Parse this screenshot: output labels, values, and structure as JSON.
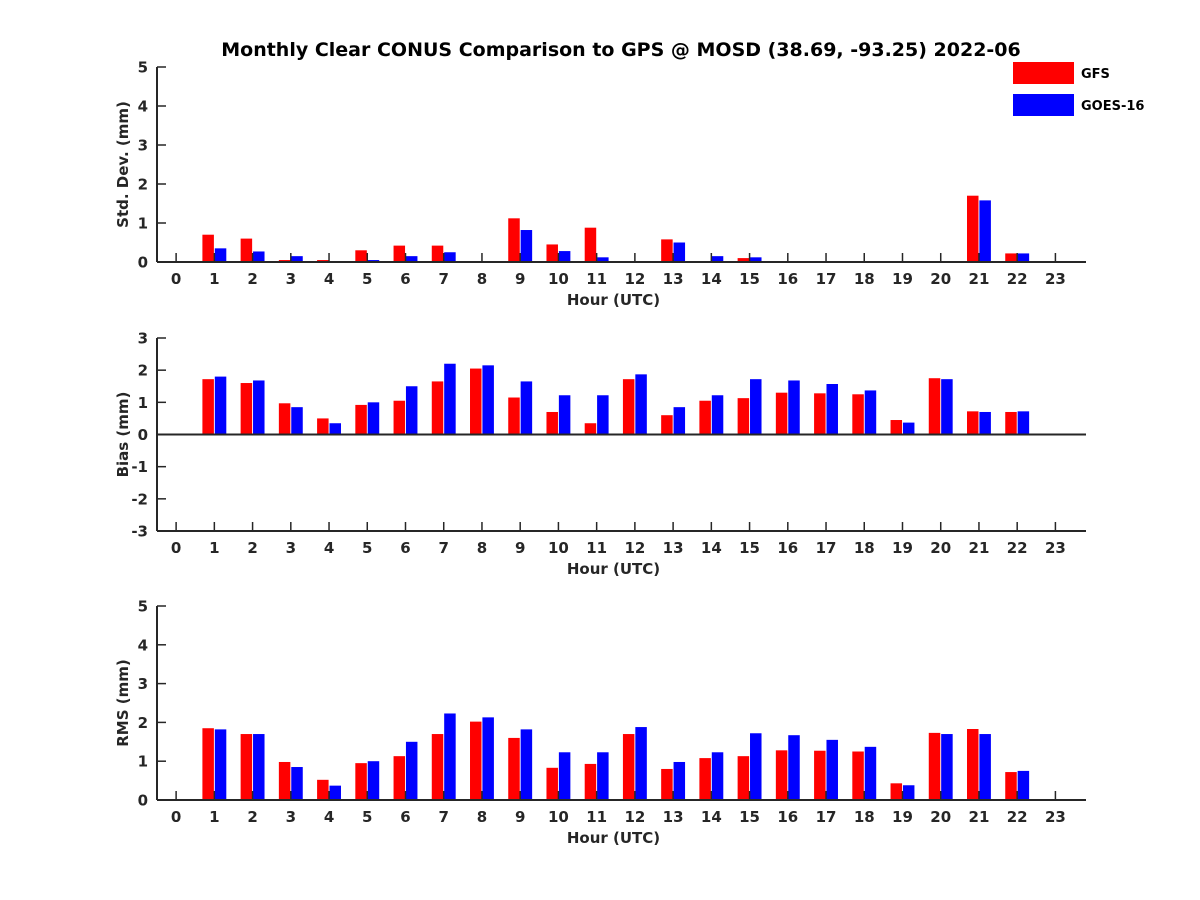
{
  "figure": {
    "title": "Monthly Clear CONUS Comparison to GPS @ MOSD (38.69, -93.25) 2022-06"
  },
  "legend": {
    "placement": "top-right",
    "entries": [
      {
        "name": "GFS",
        "color": "#ff0000"
      },
      {
        "name": "GOES-16",
        "color": "#0000ff"
      }
    ]
  },
  "chart_data": [
    {
      "type": "bar",
      "xlabel": "Hour (UTC)",
      "ylabel": "Std. Dev. (mm)",
      "xlim": [
        -0.5,
        23.8
      ],
      "ylim": [
        0,
        5
      ],
      "yticks": [
        0,
        1,
        2,
        3,
        4,
        5
      ],
      "grid": false,
      "categories": [
        0,
        1,
        2,
        3,
        4,
        5,
        6,
        7,
        8,
        9,
        10,
        11,
        12,
        13,
        14,
        15,
        16,
        17,
        18,
        19,
        20,
        21,
        22,
        23
      ],
      "series": [
        {
          "name": "GFS",
          "color": "#ff0000",
          "values": [
            null,
            0.7,
            0.6,
            0.05,
            0.05,
            0.3,
            0.42,
            0.42,
            null,
            1.12,
            0.45,
            0.88,
            null,
            0.58,
            0.02,
            0.1,
            null,
            null,
            null,
            null,
            null,
            1.7,
            0.22,
            null
          ]
        },
        {
          "name": "GOES-16",
          "color": "#0000ff",
          "values": [
            null,
            0.35,
            0.27,
            0.15,
            null,
            0.05,
            0.15,
            0.25,
            null,
            0.82,
            0.28,
            0.12,
            null,
            0.5,
            0.15,
            0.12,
            null,
            null,
            null,
            null,
            null,
            1.58,
            0.22,
            null
          ]
        }
      ]
    },
    {
      "type": "bar",
      "xlabel": "Hour (UTC)",
      "ylabel": "Bias (mm)",
      "xlim": [
        -0.5,
        23.8
      ],
      "ylim": [
        -3,
        3
      ],
      "yticks": [
        -3,
        -2,
        -1,
        0,
        1,
        2,
        3
      ],
      "grid": false,
      "categories": [
        0,
        1,
        2,
        3,
        4,
        5,
        6,
        7,
        8,
        9,
        10,
        11,
        12,
        13,
        14,
        15,
        16,
        17,
        18,
        19,
        20,
        21,
        22,
        23
      ],
      "series": [
        {
          "name": "GFS",
          "color": "#ff0000",
          "values": [
            null,
            1.72,
            1.6,
            0.97,
            0.5,
            0.92,
            1.05,
            1.65,
            2.05,
            1.15,
            0.7,
            0.35,
            1.72,
            0.6,
            1.05,
            1.13,
            1.3,
            1.28,
            1.25,
            0.45,
            1.75,
            0.72,
            0.7,
            null
          ]
        },
        {
          "name": "GOES-16",
          "color": "#0000ff",
          "values": [
            null,
            1.8,
            1.68,
            0.85,
            0.35,
            1.0,
            1.5,
            2.2,
            2.15,
            1.65,
            1.22,
            1.22,
            1.87,
            0.85,
            1.22,
            1.72,
            1.68,
            1.57,
            1.37,
            0.37,
            1.72,
            0.7,
            0.72,
            null
          ]
        }
      ]
    },
    {
      "type": "bar",
      "xlabel": "Hour (UTC)",
      "ylabel": "RMS (mm)",
      "xlim": [
        -0.5,
        23.8
      ],
      "ylim": [
        0,
        5
      ],
      "yticks": [
        0,
        1,
        2,
        3,
        4,
        5
      ],
      "grid": false,
      "categories": [
        0,
        1,
        2,
        3,
        4,
        5,
        6,
        7,
        8,
        9,
        10,
        11,
        12,
        13,
        14,
        15,
        16,
        17,
        18,
        19,
        20,
        21,
        22,
        23
      ],
      "series": [
        {
          "name": "GFS",
          "color": "#ff0000",
          "values": [
            null,
            1.85,
            1.7,
            0.98,
            0.52,
            0.95,
            1.13,
            1.7,
            2.02,
            1.6,
            0.83,
            0.93,
            1.7,
            0.8,
            1.08,
            1.13,
            1.28,
            1.27,
            1.25,
            0.43,
            1.73,
            1.83,
            0.72,
            null
          ]
        },
        {
          "name": "GOES-16",
          "color": "#0000ff",
          "values": [
            null,
            1.82,
            1.7,
            0.85,
            0.37,
            1.0,
            1.5,
            2.23,
            2.13,
            1.82,
            1.23,
            1.23,
            1.88,
            0.98,
            1.23,
            1.72,
            1.67,
            1.55,
            1.37,
            0.38,
            1.7,
            1.7,
            0.75,
            null
          ]
        }
      ]
    }
  ]
}
